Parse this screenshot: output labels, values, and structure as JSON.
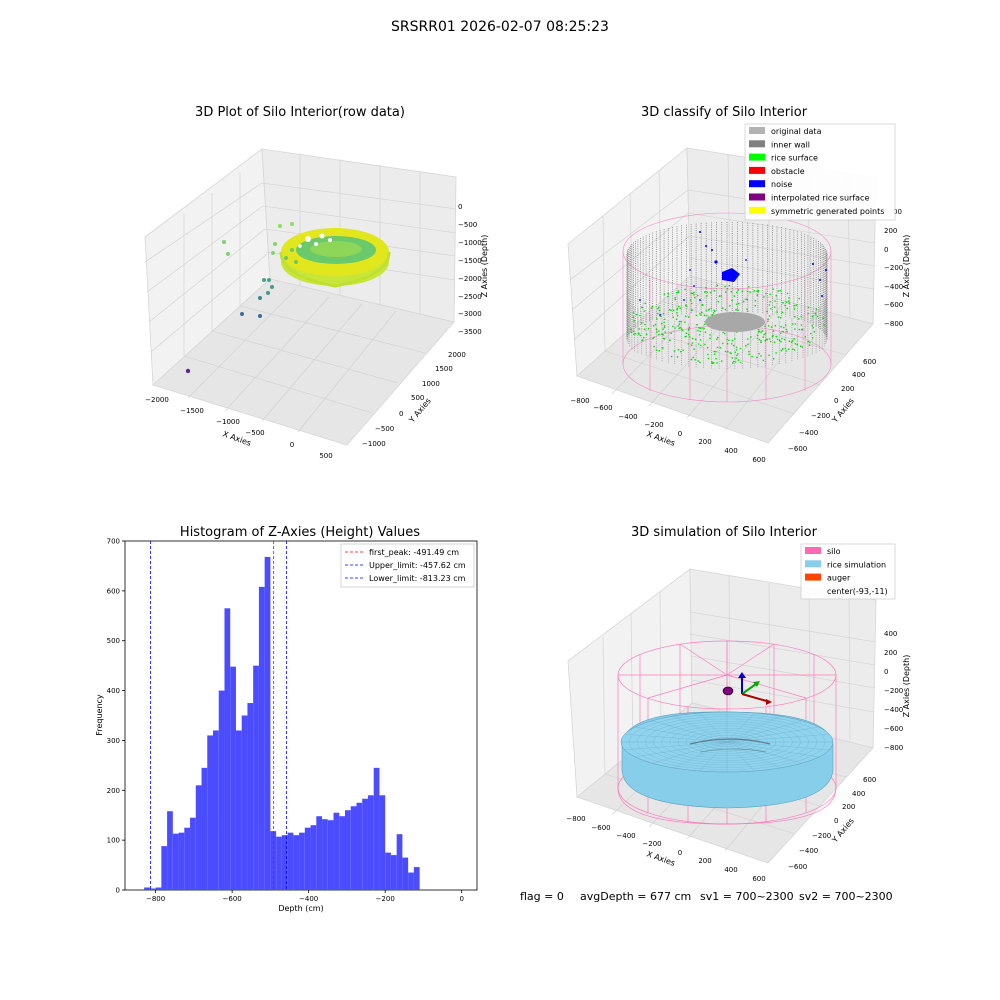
{
  "suptitle": "SRSRR01 2026-02-07 08:25:23",
  "footer": {
    "flag": "flag = 0",
    "avg_depth": "avgDepth = 677 cm",
    "sv1": "sv1 = 700~2300",
    "sv2": "sv2 = 700~2300"
  },
  "colors": {
    "hist_bar": "#4c4cff",
    "peak_line": "#ff0000",
    "limit_line": "#0000ff",
    "rice_surface": "#00ff00",
    "inner_wall": "#808080",
    "silo": "#ff69b4",
    "rice_sim": "#87ceeb",
    "auger": "#ff4500"
  },
  "plot1": {
    "title": "3D Plot of Silo Interior(row data)",
    "xlabel": "X Axies",
    "ylabel": "Y Axies",
    "zlabel": "Z Axies (Depth)",
    "xticks": [
      "−2000",
      "−1500",
      "−1000",
      "−500",
      "0",
      "500"
    ],
    "yticks": [
      "−1000",
      "−500",
      "0",
      "500",
      "1000",
      "1500",
      "2000"
    ],
    "zticks": [
      "0",
      "−500",
      "−1000",
      "−1500",
      "−2000",
      "−2500",
      "−3000",
      "−3500"
    ]
  },
  "plot2": {
    "title": "3D classify of Silo Interior",
    "xlabel": "X Axies",
    "ylabel": "Y Axies",
    "zlabel": "Z Axies (Depth)",
    "xticks": [
      "−800",
      "−600",
      "−400",
      "−200",
      "0",
      "200",
      "400",
      "600"
    ],
    "yticks": [
      "−600",
      "−400",
      "−200",
      "0",
      "200",
      "400",
      "600"
    ],
    "zticks": [
      "200",
      "0",
      "−200",
      "−400",
      "−600",
      "−800"
    ],
    "zticks_partial": "00",
    "legend": [
      {
        "label": "original data",
        "color": "#b3b3b3"
      },
      {
        "label": "inner wall",
        "color": "#808080"
      },
      {
        "label": "rice surface",
        "color": "#00ff00"
      },
      {
        "label": "obstacle",
        "color": "#ff0000"
      },
      {
        "label": "noise",
        "color": "#0000ff"
      },
      {
        "label": "interpolated rice surface",
        "color": "#800080"
      },
      {
        "label": "symmetric generated points",
        "color": "#ffff00"
      }
    ]
  },
  "plot4": {
    "title": "3D simulation of Silo Interior",
    "xlabel": "X Axies",
    "ylabel": "Y Axies",
    "zlabel": "Z Axies (Depth)",
    "xticks": [
      "−800",
      "−600",
      "−400",
      "−200",
      "0",
      "200",
      "400",
      "600"
    ],
    "yticks": [
      "−600",
      "−400",
      "−200",
      "0",
      "200",
      "400",
      "600"
    ],
    "zticks": [
      "400",
      "200",
      "0",
      "−200",
      "−400",
      "−600",
      "−800"
    ],
    "legend": [
      {
        "label": "silo",
        "color": "#ff69b4"
      },
      {
        "label": "rice simulation",
        "color": "#87ceeb"
      },
      {
        "label": "auger",
        "color": "#ff4500"
      },
      {
        "label": "center(-93,-11)",
        "color": ""
      }
    ]
  },
  "chart_data": {
    "type": "bar",
    "title": "Histogram of Z-Axies (Height) Values",
    "xlabel": "Depth (cm)",
    "ylabel": "Frequency",
    "xlim": [
      -880,
      40
    ],
    "ylim": [
      0,
      700
    ],
    "xticks": [
      -800,
      -600,
      -400,
      -200,
      0
    ],
    "yticks": [
      0,
      100,
      200,
      300,
      400,
      500,
      600,
      700
    ],
    "bin_start": -830,
    "bin_width": 15,
    "values": [
      5,
      3,
      5,
      88,
      158,
      113,
      115,
      125,
      145,
      210,
      245,
      310,
      320,
      400,
      565,
      448,
      320,
      350,
      375,
      450,
      608,
      668,
      118,
      107,
      110,
      115,
      110,
      115,
      125,
      130,
      148,
      142,
      140,
      155,
      148,
      160,
      168,
      175,
      183,
      190,
      245,
      190,
      75,
      70,
      112,
      65,
      35,
      46
    ],
    "vlines": [
      {
        "name": "first_peak",
        "label": "first_peak: -491.49 cm",
        "x": -491.49,
        "color": "#ff0000"
      },
      {
        "name": "upper_limit",
        "label": "Upper_limit: -457.62 cm",
        "x": -457.62,
        "color": "#0000ff"
      },
      {
        "name": "lower_limit",
        "label": "Lower_limit: -813.23 cm",
        "x": -813.23,
        "color": "#0000ff"
      }
    ],
    "legend_position": "top-right",
    "grid": false
  }
}
